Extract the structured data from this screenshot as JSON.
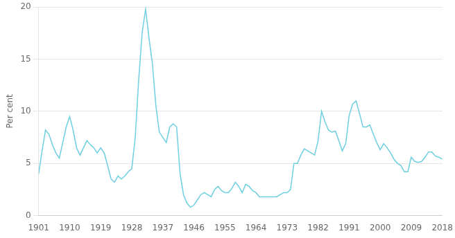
{
  "chart_data": {
    "type": "line",
    "ylabel": "Per cent",
    "color": "#6dcfe0",
    "xlim": [
      1901,
      2018
    ],
    "ylim": [
      0,
      20
    ],
    "yticks": [
      0,
      5,
      10,
      15,
      20
    ],
    "xticks": [
      1901,
      1910,
      1919,
      1928,
      1937,
      1946,
      1955,
      1964,
      1973,
      1982,
      1991,
      2000,
      2009,
      2018
    ],
    "grid": "y",
    "x": [
      1901,
      1902,
      1903,
      1904,
      1905,
      1906,
      1907,
      1908,
      1909,
      1910,
      1911,
      1912,
      1913,
      1914,
      1915,
      1916,
      1917,
      1918,
      1919,
      1920,
      1921,
      1922,
      1923,
      1924,
      1925,
      1926,
      1927,
      1928,
      1929,
      1930,
      1931,
      1932,
      1933,
      1934,
      1935,
      1936,
      1937,
      1938,
      1939,
      1940,
      1941,
      1942,
      1943,
      1944,
      1945,
      1946,
      1947,
      1948,
      1949,
      1950,
      1951,
      1952,
      1953,
      1954,
      1955,
      1956,
      1957,
      1958,
      1959,
      1960,
      1961,
      1962,
      1963,
      1964,
      1965,
      1966,
      1967,
      1968,
      1969,
      1970,
      1971,
      1972,
      1973,
      1974,
      1975,
      1976,
      1977,
      1978,
      1979,
      1980,
      1981,
      1982,
      1983,
      1984,
      1985,
      1986,
      1987,
      1988,
      1989,
      1990,
      1991,
      1992,
      1993,
      1994,
      1995,
      1996,
      1997,
      1998,
      1999,
      2000,
      2001,
      2002,
      2003,
      2004,
      2005,
      2006,
      2007,
      2008,
      2009,
      2010,
      2011,
      2012,
      2013,
      2014,
      2015,
      2016,
      2017,
      2018
    ],
    "values": [
      4.0,
      6.2,
      8.2,
      7.8,
      6.8,
      6.0,
      5.5,
      7.0,
      8.5,
      9.5,
      8.2,
      6.5,
      5.8,
      6.5,
      7.2,
      6.8,
      6.5,
      6.0,
      6.5,
      6.0,
      4.8,
      3.5,
      3.2,
      3.8,
      3.5,
      3.8,
      4.2,
      4.5,
      7.5,
      13.0,
      17.5,
      19.8,
      17.0,
      14.5,
      10.5,
      8.0,
      7.5,
      7.0,
      8.5,
      8.8,
      8.5,
      4.0,
      2.0,
      1.2,
      0.8,
      1.0,
      1.5,
      2.0,
      2.2,
      2.0,
      1.8,
      2.5,
      2.8,
      2.4,
      2.2,
      2.2,
      2.6,
      3.2,
      2.8,
      2.2,
      3.0,
      2.8,
      2.4,
      2.2,
      1.8,
      1.8,
      1.8,
      1.8,
      1.8,
      1.8,
      2.0,
      2.2,
      2.2,
      2.5,
      5.0,
      5.0,
      5.8,
      6.4,
      6.2,
      6.0,
      5.8,
      7.2,
      10.0,
      9.0,
      8.2,
      8.0,
      8.1,
      7.2,
      6.2,
      6.9,
      9.6,
      10.7,
      11.0,
      9.8,
      8.5,
      8.5,
      8.7,
      7.8,
      7.0,
      6.3,
      6.9,
      6.5,
      6.0,
      5.4,
      5.0,
      4.8,
      4.2,
      4.2,
      5.6,
      5.2,
      5.1,
      5.2,
      5.6,
      6.1,
      6.1,
      5.7,
      5.6,
      5.4
    ]
  }
}
